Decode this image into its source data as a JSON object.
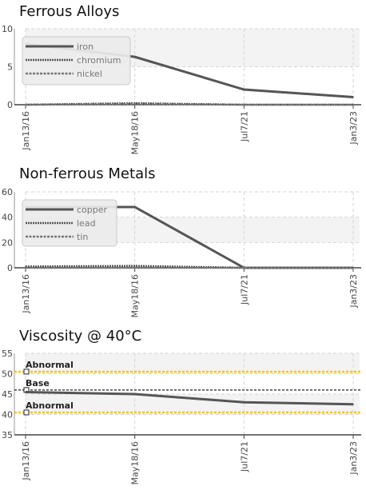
{
  "chart_data": [
    {
      "type": "line",
      "title": "Ferrous Alloys",
      "categories": [
        "Jan13/16",
        "May18/16",
        "Jul7/21",
        "Jan3/23"
      ],
      "ylim": [
        0,
        10
      ],
      "yticks": [
        0,
        5,
        10
      ],
      "grid": true,
      "legend_placement": "top-left",
      "series": [
        {
          "name": "iron",
          "values": [
            8,
            6.3,
            2,
            1
          ],
          "style": "solid",
          "color": "#555555"
        },
        {
          "name": "chromium",
          "values": [
            0,
            0.2,
            0,
            0
          ],
          "style": "dotted",
          "color": "#555555"
        },
        {
          "name": "nickel",
          "values": [
            0,
            0.1,
            0,
            0
          ],
          "style": "dashed",
          "color": "#777777"
        }
      ]
    },
    {
      "type": "line",
      "title": "Non-ferrous Metals",
      "categories": [
        "Jan13/16",
        "May18/16",
        "Jul7/21",
        "Jan3/23"
      ],
      "ylim": [
        0,
        60
      ],
      "yticks": [
        0,
        20,
        40,
        60
      ],
      "grid": true,
      "legend_placement": "top-left",
      "series": [
        {
          "name": "copper",
          "values": [
            48,
            48,
            0,
            0
          ],
          "style": "solid",
          "color": "#555555"
        },
        {
          "name": "lead",
          "values": [
            1,
            1.5,
            0,
            0
          ],
          "style": "dotted",
          "color": "#555555"
        },
        {
          "name": "tin",
          "values": [
            0,
            0,
            0,
            0
          ],
          "style": "dashed",
          "color": "#777777"
        }
      ]
    },
    {
      "type": "line",
      "title": "Viscosity @ 40°C",
      "categories": [
        "Jan13/16",
        "May18/16",
        "Jul7/21",
        "Jan3/23"
      ],
      "ylim": [
        35,
        55
      ],
      "yticks": [
        35,
        40,
        45,
        50,
        55
      ],
      "grid": true,
      "series": [
        {
          "name": "",
          "values": [
            45.5,
            45,
            43,
            42.5
          ],
          "style": "solid",
          "color": "#555555"
        }
      ],
      "reference_lines": [
        {
          "label": "Abnormal",
          "value": 50.5,
          "color": "#f5c800",
          "style": "dashed"
        },
        {
          "label": "Base",
          "value": 46,
          "color": "#444444",
          "style": "dashed"
        },
        {
          "label": "Abnormal",
          "value": 40.5,
          "color": "#f5c800",
          "style": "dashed"
        }
      ]
    }
  ]
}
